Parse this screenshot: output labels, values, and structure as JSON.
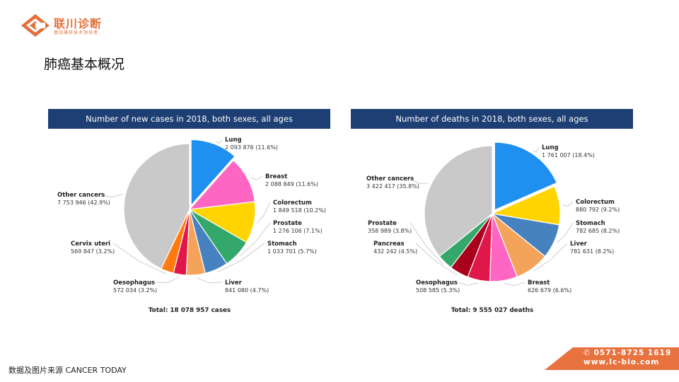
{
  "brand": {
    "name": "联川诊断",
    "tagline": "基因捕获技术领导者",
    "accent": "#e2703a"
  },
  "page_title": "肺癌基本概况",
  "source_note": "数据及图片来源 CANCER  TODAY",
  "contact": {
    "phone_icon": "phone-icon",
    "phone": "0571-8725 1619",
    "website": "www.lc-bio.com"
  },
  "chart_data": [
    {
      "type": "pie",
      "title": "Number of new cases in 2018, both sexes, all ages",
      "total_label": "Total: 18 078 957 cases",
      "exploded": "Lung",
      "slices": [
        {
          "name": "Lung",
          "value": 2093876,
          "value_label": "2 093 876 (11.6%)",
          "percent": 11.6,
          "color": "#1f8ff0"
        },
        {
          "name": "Breast",
          "value": 2088849,
          "value_label": "2 088 849 (11.6%)",
          "percent": 11.6,
          "color": "#ff66c4"
        },
        {
          "name": "Colorectum",
          "value": 1849518,
          "value_label": "1 849 518 (10.2%)",
          "percent": 10.2,
          "color": "#ffd400"
        },
        {
          "name": "Prostate",
          "value": 1276106,
          "value_label": "1 276 106 (7.1%)",
          "percent": 7.1,
          "color": "#33a86a"
        },
        {
          "name": "Stomach",
          "value": 1033701,
          "value_label": "1 033 701 (5.7%)",
          "percent": 5.7,
          "color": "#4681c0"
        },
        {
          "name": "Liver",
          "value": 841080,
          "value_label": "841 080 (4.7%)",
          "percent": 4.7,
          "color": "#f4a45a"
        },
        {
          "name": "Oesophagus",
          "value": 572034,
          "value_label": "572 034 (3.2%)",
          "percent": 3.2,
          "color": "#e0174a"
        },
        {
          "name": "Cervix uteri",
          "value": 569847,
          "value_label": "569 847 (3.2%)",
          "percent": 3.2,
          "color": "#ff7a10"
        },
        {
          "name": "Other cancers",
          "value": 7753946,
          "value_label": "7 753 946 (42.9%)",
          "percent": 42.9,
          "color": "#c9c9c9"
        }
      ]
    },
    {
      "type": "pie",
      "title": "Number of deaths in 2018, both sexes, all ages",
      "total_label": "Total: 9 555 027 deaths",
      "exploded": "Lung",
      "slices": [
        {
          "name": "Lung",
          "value": 1761007,
          "value_label": "1 761 007 (18.4%)",
          "percent": 18.4,
          "color": "#1f8ff0"
        },
        {
          "name": "Colorectum",
          "value": 880792,
          "value_label": "880 792 (9.2%)",
          "percent": 9.2,
          "color": "#ffd400"
        },
        {
          "name": "Stomach",
          "value": 782685,
          "value_label": "782 685 (8.2%)",
          "percent": 8.2,
          "color": "#4681c0"
        },
        {
          "name": "Liver",
          "value": 781631,
          "value_label": "781 631 (8.2%)",
          "percent": 8.2,
          "color": "#f4a45a"
        },
        {
          "name": "Breast",
          "value": 626679,
          "value_label": "626 679 (6.6%)",
          "percent": 6.6,
          "color": "#ff66c4"
        },
        {
          "name": "Oesophagus",
          "value": 508585,
          "value_label": "508 585 (5.3%)",
          "percent": 5.3,
          "color": "#e0174a"
        },
        {
          "name": "Pancreas",
          "value": 432242,
          "value_label": "432 242 (4.5%)",
          "percent": 4.5,
          "color": "#a8001c"
        },
        {
          "name": "Prostate",
          "value": 358989,
          "value_label": "358 989 (3.8%)",
          "percent": 3.8,
          "color": "#33a86a"
        },
        {
          "name": "Other cancers",
          "value": 3422417,
          "value_label": "3 422 417 (35.8%)",
          "percent": 35.8,
          "color": "#c9c9c9"
        }
      ]
    }
  ]
}
